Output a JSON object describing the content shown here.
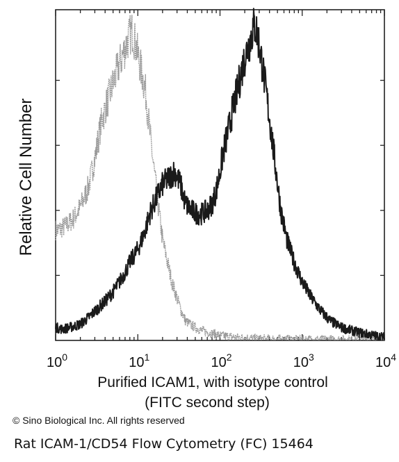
{
  "chart_data": {
    "type": "line",
    "title": "",
    "xlabel_line1": "Purified ICAM1, with isotype control",
    "xlabel_line2": "(FITC second step)",
    "ylabel": "Relative Cell Number",
    "x_scale": "log",
    "xlim": [
      1,
      10000
    ],
    "x_ticks": [
      {
        "base": "10",
        "exp": "0"
      },
      {
        "base": "10",
        "exp": "1"
      },
      {
        "base": "10",
        "exp": "2"
      },
      {
        "base": "10",
        "exp": "3"
      },
      {
        "base": "10",
        "exp": "4"
      }
    ],
    "ylim": [
      0,
      100
    ],
    "grid": false,
    "legend": "none",
    "series": [
      {
        "role": "isotype",
        "color": "#9a9a9a",
        "x": [
          1,
          1.1,
          1.3,
          1.6,
          2.0,
          2.5,
          3.0,
          3.6,
          4.2,
          5.0,
          5.8,
          6.6,
          7.3,
          8.0,
          8.6,
          9.2,
          10,
          11,
          12.5,
          14,
          16,
          18,
          20,
          23,
          26,
          30,
          34,
          38,
          43,
          50,
          60,
          70,
          85,
          100,
          150,
          300,
          1000,
          10000
        ],
        "y": [
          34,
          34,
          35,
          37,
          41,
          47,
          56,
          67,
          73,
          79,
          84,
          88,
          91,
          94,
          95,
          92,
          88,
          83,
          76,
          64,
          51,
          40,
          31,
          24,
          18,
          13,
          9,
          6,
          5,
          4,
          3,
          2.5,
          2,
          1.5,
          1,
          0.5,
          0.3,
          0.2
        ]
      },
      {
        "role": "icam1",
        "color": "#1a1a1a",
        "x": [
          1,
          1.2,
          1.5,
          2,
          2.5,
          3,
          4,
          5,
          6,
          7,
          8,
          10,
          12,
          14,
          17,
          20,
          24,
          28,
          33,
          38,
          45,
          52,
          60,
          70,
          80,
          90,
          100,
          110,
          125,
          140,
          160,
          180,
          200,
          230,
          260,
          280,
          300,
          330,
          370,
          420,
          480,
          550,
          650,
          800,
          1000,
          1300,
          1700,
          2200,
          3000,
          4000,
          6000,
          10000
        ],
        "y": [
          4,
          3.5,
          4,
          5,
          7,
          9,
          12,
          15,
          18,
          21,
          24,
          28,
          33,
          39,
          44,
          48,
          50,
          52,
          48,
          42,
          40,
          39,
          39,
          40,
          42,
          46,
          52,
          58,
          64,
          70,
          76,
          82,
          87,
          92,
          97,
          95,
          91,
          84,
          75,
          64,
          52,
          40,
          31,
          24,
          18,
          13,
          9,
          6,
          4,
          3,
          2,
          1
        ]
      }
    ]
  },
  "footer": {
    "copyright": "© Sino Biological Inc. All rights reserved",
    "caption": "Rat ICAM-1/CD54 Flow Cytometry (FC) 15464"
  }
}
